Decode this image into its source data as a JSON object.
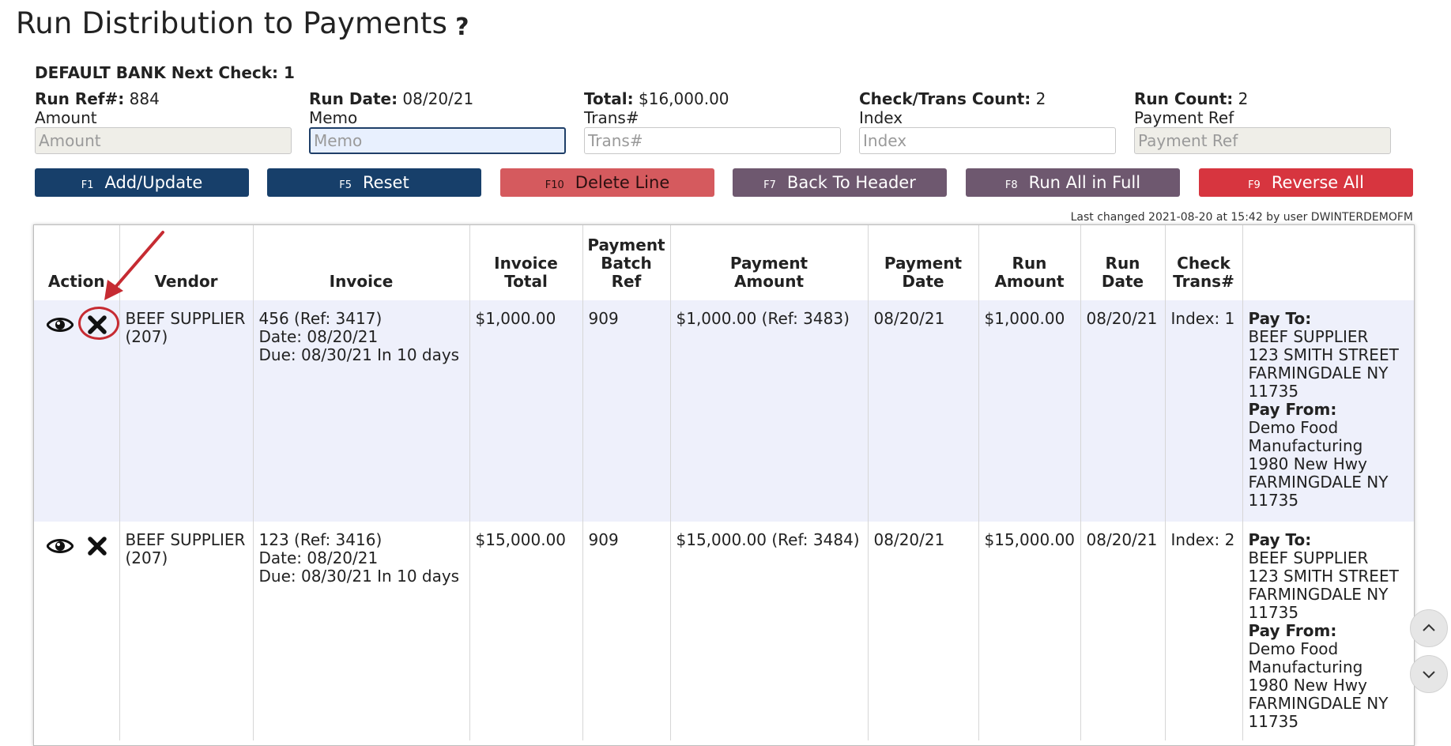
{
  "page": {
    "title": "Run Distribution to Payments",
    "help_symbol": "?"
  },
  "bank_line": "DEFAULT BANK Next Check: 1",
  "info": [
    {
      "label": "Run Ref#:",
      "value": "884",
      "field_label": "Amount",
      "field_placeholder": "Amount"
    },
    {
      "label": "Run Date:",
      "value": "08/20/21",
      "field_label": "Memo",
      "field_placeholder": "Memo"
    },
    {
      "label": "Total:",
      "value": "$16,000.00",
      "field_label": "Trans#",
      "field_placeholder": "Trans#"
    },
    {
      "label": "Check/Trans Count:",
      "value": "2",
      "field_label": "Index",
      "field_placeholder": "Index"
    },
    {
      "label": "Run Count:",
      "value": "2",
      "field_label": "Payment Ref",
      "field_placeholder": "Payment Ref"
    }
  ],
  "buttons": [
    {
      "key": "F1",
      "label": "Add/Update",
      "color": "#173f6a"
    },
    {
      "key": "F5",
      "label": "Reset",
      "color": "#173f6a"
    },
    {
      "key": "F10",
      "label": "Delete Line",
      "color": "#d55a5e"
    },
    {
      "key": "F7",
      "label": "Back To Header",
      "color": "#6e586f"
    },
    {
      "key": "F8",
      "label": "Run All in Full",
      "color": "#6e586f"
    },
    {
      "key": "F9",
      "label": "Reverse All",
      "color": "#d7353f"
    }
  ],
  "last_changed": "Last changed 2021-08-20 at 15:42 by user DWINTERDEMOFM",
  "table": {
    "headers": {
      "action": "Action",
      "vendor": "Vendor",
      "invoice": "Invoice",
      "invoice_total": [
        "Invoice",
        "Total"
      ],
      "payment_batch_ref": [
        "Payment",
        "Batch",
        "Ref"
      ],
      "payment_amount": [
        "Payment",
        "Amount"
      ],
      "payment_date": [
        "Payment",
        "Date"
      ],
      "run_amount": [
        "Run",
        "Amount"
      ],
      "run_date": [
        "Run",
        "Date"
      ],
      "check_trans": [
        "Check",
        "Trans#"
      ],
      "address": ""
    },
    "rows": [
      {
        "vendor": [
          "BEEF SUPPLIER",
          "(207)"
        ],
        "invoice": [
          "456 (Ref: 3417)",
          "Date: 08/20/21",
          "Due: 08/30/21 In 10 days"
        ],
        "invoice_total": "$1,000.00",
        "payment_batch_ref": "909",
        "payment_amount": "$1,000.00 (Ref: 3483)",
        "payment_date": "08/20/21",
        "run_amount": "$1,000.00",
        "run_date": "08/20/21",
        "check_trans": "Index: 1",
        "pay_to_label": "Pay To:",
        "pay_to": [
          "BEEF SUPPLIER",
          "123 SMITH STREET",
          "FARMINGDALE NY",
          "11735"
        ],
        "pay_from_label": "Pay From:",
        "pay_from": [
          "Demo Food",
          "Manufacturing",
          "1980 New Hwy",
          "FARMINGDALE NY",
          "11735"
        ]
      },
      {
        "vendor": [
          "BEEF SUPPLIER",
          "(207)"
        ],
        "invoice": [
          "123 (Ref: 3416)",
          "Date: 08/20/21",
          "Due: 08/30/21 In 10 days"
        ],
        "invoice_total": "$15,000.00",
        "payment_batch_ref": "909",
        "payment_amount": "$15,000.00 (Ref: 3484)",
        "payment_date": "08/20/21",
        "run_amount": "$15,000.00",
        "run_date": "08/20/21",
        "check_trans": "Index: 2",
        "pay_to_label": "Pay To:",
        "pay_to": [
          "BEEF SUPPLIER",
          "123 SMITH STREET",
          "FARMINGDALE NY",
          "11735"
        ],
        "pay_from_label": "Pay From:",
        "pay_from": [
          "Demo Food",
          "Manufacturing",
          "1980 New Hwy",
          "FARMINGDALE NY",
          "11735"
        ]
      }
    ]
  },
  "icons": {
    "view": "eye-icon",
    "delete": "x-icon",
    "scroll_up": "chevron-up-icon",
    "scroll_down": "chevron-down-icon",
    "annotation": "red-arrow"
  },
  "colors": {
    "highlight": "#c62b32",
    "row_alt": "#eef0fb"
  }
}
